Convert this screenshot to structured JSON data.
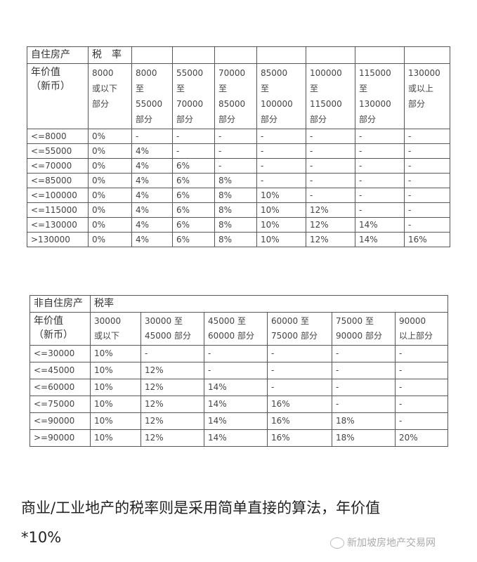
{
  "table1": {
    "header": [
      "自住房产",
      "税　率",
      "",
      "",
      "",
      "",
      "",
      "",
      ""
    ],
    "subheader": [
      "年价值\n（新币）",
      "8000\n或以下\n部分",
      "8000\n至\n55000\n部分",
      "55000\n至\n70000\n部分",
      "70000\n至\n85000\n部分",
      "85000\n至\n100000\n部分",
      "100000\n至\n115000\n部分",
      "115000\n至\n130000\n部分",
      "130000\n或以上\n部分"
    ],
    "rows": [
      [
        "<=8000",
        "0%",
        "-",
        "-",
        "-",
        "-",
        "-",
        "-",
        "-"
      ],
      [
        "<=55000",
        "0%",
        "4%",
        "-",
        "-",
        "-",
        "-",
        "-",
        "-"
      ],
      [
        "<=70000",
        "0%",
        "4%",
        "6%",
        "-",
        "-",
        "-",
        "-",
        "-"
      ],
      [
        "<=85000",
        "0%",
        "4%",
        "6%",
        "8%",
        "-",
        "-",
        "-",
        "-"
      ],
      [
        "<=100000",
        "0%",
        "4%",
        "6%",
        "8%",
        "10%",
        "-",
        "-",
        "-"
      ],
      [
        "<=115000",
        "0%",
        "4%",
        "6%",
        "8%",
        "10%",
        "12%",
        "-",
        "-"
      ],
      [
        "<=130000",
        "0%",
        "4%",
        "6%",
        "8%",
        "10%",
        "12%",
        "14%",
        "-"
      ],
      [
        ">130000",
        "0%",
        "4%",
        "6%",
        "8%",
        "10%",
        "12%",
        "14%",
        "16%"
      ]
    ]
  },
  "table2": {
    "header": [
      "非自住房产",
      "税率"
    ],
    "subheader": [
      "年价值\n（新币）",
      "30000\n或以下",
      "30000 至\n45000 部分",
      "45000 至\n60000 部分",
      "60000 至\n75000 部分",
      "75000 至\n90000 部分",
      "90000\n以上部分"
    ],
    "rows": [
      [
        "<=30000",
        "10%",
        "-",
        "-",
        "-",
        "-",
        "-"
      ],
      [
        "<=45000",
        "10%",
        "12%",
        "-",
        "-",
        "-",
        "-"
      ],
      [
        "<=60000",
        "10%",
        "12%",
        "14%",
        "-",
        "-",
        "-"
      ],
      [
        "<=75000",
        "10%",
        "12%",
        "14%",
        "16%",
        "-",
        "-"
      ],
      [
        "<=90000",
        "10%",
        "12%",
        "14%",
        "16%",
        "18%",
        "-"
      ],
      [
        ">=90000",
        "10%",
        "12%",
        "14%",
        "16%",
        "18%",
        "20%"
      ]
    ]
  },
  "note": "商业/工业地产的税率则是采用简单直接的算法，年价值\n*10%",
  "watermark": "新加坡房地产交易网",
  "watermark_icon": "wechat-icon"
}
